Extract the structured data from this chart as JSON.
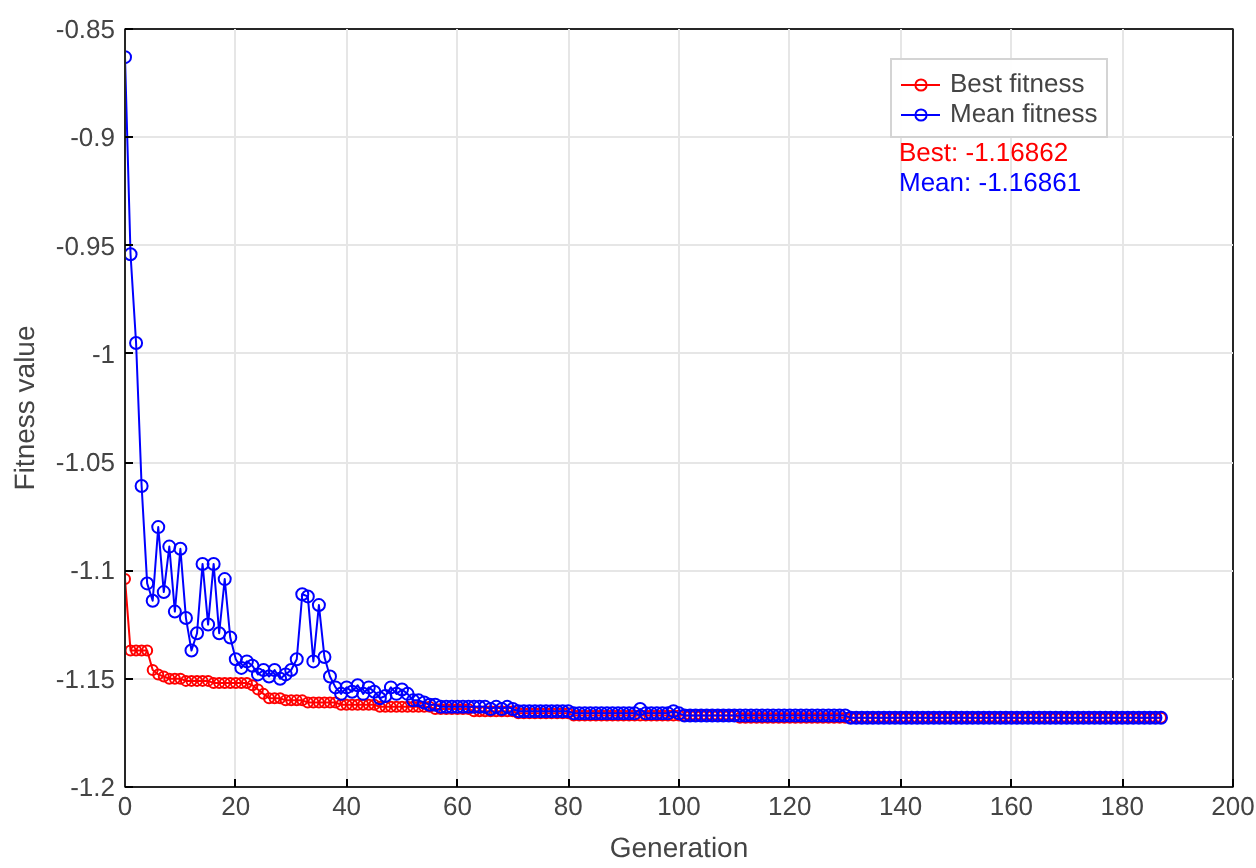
{
  "chart_data": {
    "type": "line",
    "xlabel": "Generation",
    "ylabel": "Fitness value",
    "xlim": [
      0,
      200
    ],
    "xticks": [
      0,
      20,
      40,
      60,
      80,
      100,
      120,
      140,
      160,
      180,
      200
    ],
    "ylim": [
      -1.2,
      -0.85
    ],
    "yticks": [
      -1.2,
      -1.15,
      -1.1,
      -1.05,
      -1,
      -0.95,
      -0.9,
      -0.85
    ],
    "x": [
      0,
      1,
      2,
      3,
      4,
      5,
      6,
      7,
      8,
      9,
      10,
      11,
      12,
      13,
      14,
      15,
      16,
      17,
      18,
      19,
      20,
      21,
      22,
      23,
      24,
      25,
      26,
      27,
      28,
      29,
      30,
      31,
      32,
      33,
      34,
      35,
      36,
      37,
      38,
      39,
      40,
      41,
      42,
      43,
      44,
      45,
      46,
      47,
      48,
      49,
      50,
      51,
      52,
      53,
      54,
      55,
      56,
      57,
      58,
      59,
      60,
      61,
      62,
      63,
      64,
      65,
      66,
      67,
      68,
      69,
      70,
      71,
      72,
      73,
      74,
      75,
      76,
      77,
      78,
      79,
      80,
      81,
      82,
      83,
      84,
      85,
      86,
      87,
      88,
      89,
      90,
      91,
      92,
      93,
      94,
      95,
      96,
      97,
      98,
      99,
      100,
      101,
      102,
      103,
      104,
      105,
      106,
      107,
      108,
      109,
      110,
      111,
      112,
      113,
      114,
      115,
      116,
      117,
      118,
      119,
      120,
      121,
      122,
      123,
      124,
      125,
      126,
      127,
      128,
      129,
      130,
      131,
      132,
      133,
      134,
      135,
      136,
      137,
      138,
      139,
      140,
      141,
      142,
      143,
      144,
      145,
      146,
      147,
      148,
      149,
      150,
      151,
      152,
      153,
      154,
      155,
      156,
      157,
      158,
      159,
      160,
      161,
      162,
      163,
      164,
      165,
      166,
      167,
      168,
      169,
      170,
      171,
      172,
      173,
      174,
      175,
      176,
      177,
      178,
      179,
      180,
      181,
      182,
      183,
      184,
      185,
      186,
      187
    ],
    "grid": true,
    "legend": "top right",
    "marker": "circle",
    "line_style": "solid",
    "annotations": [
      "Best: -1.16862",
      "Mean: -1.16861"
    ],
    "series": [
      {
        "name": "Best fitness",
        "color": "#ff0000",
        "values": [
          -1.104,
          -1.137,
          -1.137,
          -1.137,
          -1.137,
          -1.146,
          -1.148,
          -1.149,
          -1.15,
          -1.15,
          -1.15,
          -1.151,
          -1.151,
          -1.151,
          -1.151,
          -1.151,
          -1.152,
          -1.152,
          -1.152,
          -1.152,
          -1.152,
          -1.152,
          -1.152,
          -1.153,
          -1.155,
          -1.157,
          -1.159,
          -1.159,
          -1.159,
          -1.16,
          -1.16,
          -1.16,
          -1.16,
          -1.161,
          -1.161,
          -1.161,
          -1.161,
          -1.161,
          -1.161,
          -1.162,
          -1.162,
          -1.162,
          -1.162,
          -1.162,
          -1.162,
          -1.162,
          -1.163,
          -1.163,
          -1.163,
          -1.163,
          -1.163,
          -1.163,
          -1.163,
          -1.163,
          -1.163,
          -1.163,
          -1.164,
          -1.164,
          -1.164,
          -1.164,
          -1.164,
          -1.164,
          -1.164,
          -1.165,
          -1.165,
          -1.165,
          -1.165,
          -1.165,
          -1.165,
          -1.165,
          -1.165,
          -1.166,
          -1.166,
          -1.166,
          -1.166,
          -1.166,
          -1.166,
          -1.166,
          -1.166,
          -1.166,
          -1.166,
          -1.167,
          -1.167,
          -1.167,
          -1.167,
          -1.167,
          -1.167,
          -1.167,
          -1.167,
          -1.167,
          -1.167,
          -1.167,
          -1.167,
          -1.167,
          -1.167,
          -1.167,
          -1.167,
          -1.167,
          -1.167,
          -1.167,
          -1.167,
          -1.167,
          -1.167,
          -1.167,
          -1.167,
          -1.167,
          -1.167,
          -1.167,
          -1.167,
          -1.167,
          -1.167,
          -1.168,
          -1.168,
          -1.168,
          -1.168,
          -1.168,
          -1.168,
          -1.168,
          -1.168,
          -1.168,
          -1.168,
          -1.168,
          -1.168,
          -1.168,
          -1.168,
          -1.168,
          -1.168,
          -1.168,
          -1.168,
          -1.168,
          -1.168,
          -1.168,
          -1.168,
          -1.168,
          -1.168,
          -1.168,
          -1.168,
          -1.168,
          -1.168,
          -1.168,
          -1.168,
          -1.168,
          -1.168,
          -1.168,
          -1.168,
          -1.168,
          -1.168,
          -1.168,
          -1.168,
          -1.168,
          -1.168,
          -1.168,
          -1.168,
          -1.168,
          -1.168,
          -1.168,
          -1.168,
          -1.168,
          -1.168,
          -1.168,
          -1.168,
          -1.168,
          -1.168,
          -1.168,
          -1.168,
          -1.168,
          -1.168,
          -1.168,
          -1.168,
          -1.168,
          -1.168,
          -1.168,
          -1.168,
          -1.168,
          -1.168,
          -1.168,
          -1.168,
          -1.168,
          -1.168,
          -1.168,
          -1.168,
          -1.168,
          -1.168,
          -1.168,
          -1.168,
          -1.168,
          -1.168,
          -1.168
        ]
      },
      {
        "name": "Mean fitness",
        "color": "#0000ff",
        "values": [
          -0.863,
          -0.954,
          -0.995,
          -1.061,
          -1.106,
          -1.114,
          -1.08,
          -1.11,
          -1.089,
          -1.119,
          -1.09,
          -1.122,
          -1.137,
          -1.129,
          -1.097,
          -1.125,
          -1.097,
          -1.129,
          -1.104,
          -1.131,
          -1.141,
          -1.145,
          -1.142,
          -1.144,
          -1.148,
          -1.146,
          -1.149,
          -1.146,
          -1.15,
          -1.148,
          -1.146,
          -1.141,
          -1.111,
          -1.112,
          -1.142,
          -1.116,
          -1.14,
          -1.149,
          -1.154,
          -1.157,
          -1.154,
          -1.156,
          -1.153,
          -1.157,
          -1.154,
          -1.156,
          -1.159,
          -1.158,
          -1.154,
          -1.157,
          -1.155,
          -1.157,
          -1.16,
          -1.16,
          -1.161,
          -1.162,
          -1.162,
          -1.163,
          -1.163,
          -1.163,
          -1.163,
          -1.163,
          -1.163,
          -1.163,
          -1.163,
          -1.163,
          -1.164,
          -1.163,
          -1.164,
          -1.163,
          -1.164,
          -1.165,
          -1.165,
          -1.165,
          -1.165,
          -1.165,
          -1.165,
          -1.165,
          -1.165,
          -1.165,
          -1.165,
          -1.166,
          -1.166,
          -1.166,
          -1.166,
          -1.166,
          -1.166,
          -1.166,
          -1.166,
          -1.166,
          -1.166,
          -1.166,
          -1.166,
          -1.164,
          -1.166,
          -1.166,
          -1.166,
          -1.166,
          -1.166,
          -1.165,
          -1.166,
          -1.167,
          -1.167,
          -1.167,
          -1.167,
          -1.167,
          -1.167,
          -1.167,
          -1.167,
          -1.167,
          -1.167,
          -1.167,
          -1.167,
          -1.167,
          -1.167,
          -1.167,
          -1.167,
          -1.167,
          -1.167,
          -1.167,
          -1.167,
          -1.167,
          -1.167,
          -1.167,
          -1.167,
          -1.167,
          -1.167,
          -1.167,
          -1.167,
          -1.167,
          -1.167,
          -1.168,
          -1.168,
          -1.168,
          -1.168,
          -1.168,
          -1.168,
          -1.168,
          -1.168,
          -1.168,
          -1.168,
          -1.168,
          -1.168,
          -1.168,
          -1.168,
          -1.168,
          -1.168,
          -1.168,
          -1.168,
          -1.168,
          -1.168,
          -1.168,
          -1.168,
          -1.168,
          -1.168,
          -1.168,
          -1.168,
          -1.168,
          -1.168,
          -1.168,
          -1.168,
          -1.168,
          -1.168,
          -1.168,
          -1.168,
          -1.168,
          -1.168,
          -1.168,
          -1.168,
          -1.168,
          -1.168,
          -1.168,
          -1.168,
          -1.168,
          -1.168,
          -1.168,
          -1.168,
          -1.168,
          -1.168,
          -1.168,
          -1.168,
          -1.168,
          -1.168,
          -1.168,
          -1.168,
          -1.168,
          -1.168,
          -1.168
        ]
      }
    ]
  }
}
